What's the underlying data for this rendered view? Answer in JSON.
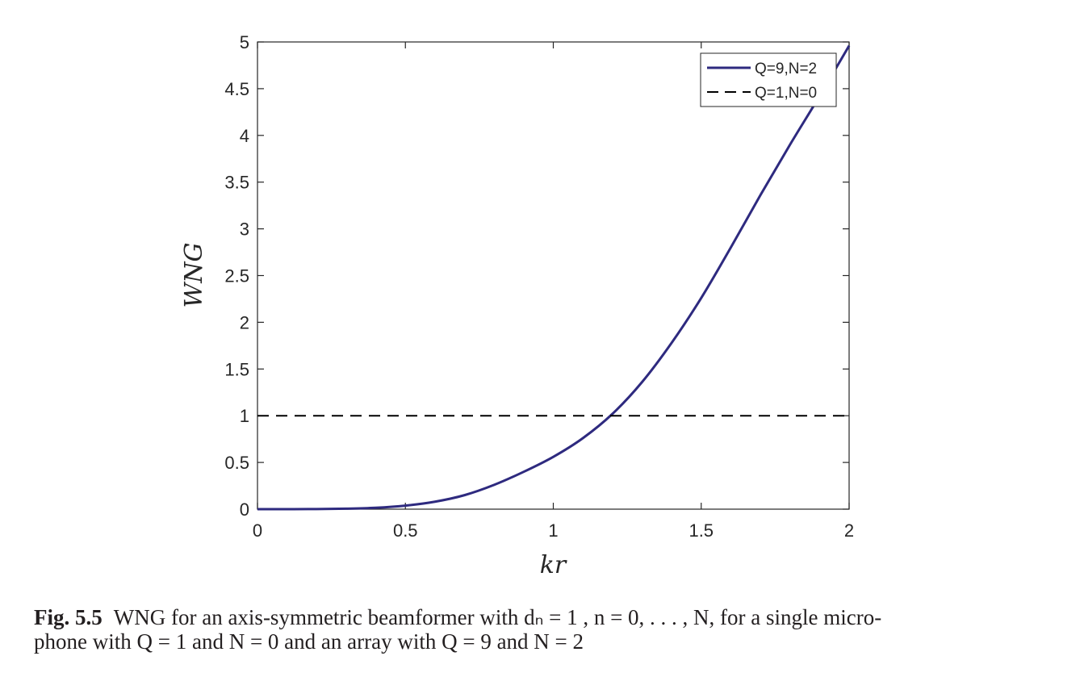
{
  "chart_data": {
    "type": "line",
    "xlabel": "kr",
    "ylabel": "WNG",
    "xlim": [
      0,
      2
    ],
    "ylim": [
      0,
      5
    ],
    "xticks": [
      "0",
      "0.5",
      "1",
      "1.5",
      "2"
    ],
    "yticks": [
      "0",
      "0.5",
      "1",
      "1.5",
      "2",
      "2.5",
      "3",
      "3.5",
      "4",
      "4.5",
      "5"
    ],
    "grid": false,
    "legend_position": "top-right",
    "series": [
      {
        "name": "Q=9,N=2",
        "style": "solid",
        "color": "#2e2a7f",
        "x": [
          0,
          0.1,
          0.2,
          0.3,
          0.4,
          0.5,
          0.6,
          0.7,
          0.8,
          0.9,
          1.0,
          1.1,
          1.2,
          1.3,
          1.4,
          1.5,
          1.6,
          1.7,
          1.8,
          1.9,
          2.0
        ],
        "y": [
          0,
          0.0,
          0.001,
          0.005,
          0.015,
          0.038,
          0.08,
          0.15,
          0.26,
          0.4,
          0.56,
          0.76,
          1.02,
          1.36,
          1.78,
          2.26,
          2.8,
          3.36,
          3.9,
          4.42,
          4.96
        ]
      },
      {
        "name": "Q=1,N=0",
        "style": "dashed",
        "color": "#000000",
        "x": [
          0,
          2
        ],
        "y": [
          1,
          1
        ]
      }
    ]
  },
  "caption": {
    "figure_number": "Fig. 5.5",
    "line1": "WNG for an axis-symmetric beamformer with dₙ = 1 , n = 0, . . . , N, for a single micro-",
    "line2": "phone with Q = 1 and N = 0 and an array with Q = 9 and N = 2"
  }
}
